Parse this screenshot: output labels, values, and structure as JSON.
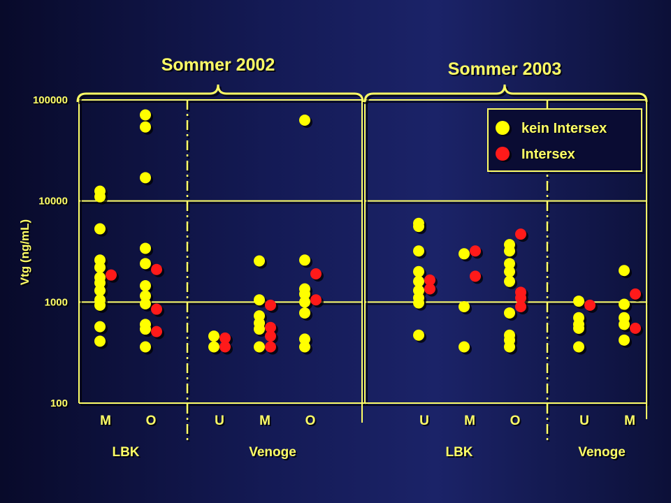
{
  "chart_data": {
    "type": "scatter",
    "ylabel": "Vtg (ng/mL)",
    "yscale": "log",
    "ylim": [
      100,
      100000
    ],
    "yticks": [
      "100",
      "1000",
      "10000",
      "100000"
    ],
    "grid": true,
    "legend_position": "top-right",
    "seasons": [
      {
        "label": "Sommer 2002",
        "groups": [
          0,
          1
        ]
      },
      {
        "label": "Sommer 2003",
        "groups": [
          2,
          3
        ]
      }
    ],
    "groups": [
      {
        "label": "LBK",
        "categories": [
          0,
          1
        ]
      },
      {
        "label": "Venoge",
        "categories": [
          2,
          3,
          4
        ]
      },
      {
        "label": "LBK",
        "categories": [
          5,
          6,
          7
        ]
      },
      {
        "label": "Venoge",
        "categories": [
          8,
          9
        ]
      }
    ],
    "categories": [
      "M",
      "O",
      "U",
      "M",
      "O",
      "U",
      "M",
      "O",
      "U",
      "M"
    ],
    "series": [
      {
        "name": "kein Intersex",
        "color": "#ffff00",
        "points": [
          {
            "cat": 0,
            "y": 12500
          },
          {
            "cat": 0,
            "y": 11000
          },
          {
            "cat": 0,
            "y": 5300
          },
          {
            "cat": 0,
            "y": 2600
          },
          {
            "cat": 0,
            "y": 2200
          },
          {
            "cat": 0,
            "y": 1750
          },
          {
            "cat": 0,
            "y": 1550
          },
          {
            "cat": 0,
            "y": 1300
          },
          {
            "cat": 0,
            "y": 1050
          },
          {
            "cat": 0,
            "y": 930
          },
          {
            "cat": 0,
            "y": 570
          },
          {
            "cat": 0,
            "y": 410
          },
          {
            "cat": 1,
            "y": 71000
          },
          {
            "cat": 1,
            "y": 54000
          },
          {
            "cat": 1,
            "y": 17000
          },
          {
            "cat": 1,
            "y": 3400
          },
          {
            "cat": 1,
            "y": 2400
          },
          {
            "cat": 1,
            "y": 1450
          },
          {
            "cat": 1,
            "y": 1150
          },
          {
            "cat": 1,
            "y": 960
          },
          {
            "cat": 1,
            "y": 600
          },
          {
            "cat": 1,
            "y": 540
          },
          {
            "cat": 1,
            "y": 360
          },
          {
            "cat": 2,
            "y": 460
          },
          {
            "cat": 2,
            "y": 360
          },
          {
            "cat": 3,
            "y": 2550
          },
          {
            "cat": 3,
            "y": 1050
          },
          {
            "cat": 3,
            "y": 730
          },
          {
            "cat": 3,
            "y": 620
          },
          {
            "cat": 3,
            "y": 540
          },
          {
            "cat": 3,
            "y": 360
          },
          {
            "cat": 4,
            "y": 63000
          },
          {
            "cat": 4,
            "y": 2600
          },
          {
            "cat": 4,
            "y": 1350
          },
          {
            "cat": 4,
            "y": 1200
          },
          {
            "cat": 4,
            "y": 1000
          },
          {
            "cat": 4,
            "y": 780
          },
          {
            "cat": 4,
            "y": 430
          },
          {
            "cat": 4,
            "y": 360
          },
          {
            "cat": 5,
            "y": 6000
          },
          {
            "cat": 5,
            "y": 5600
          },
          {
            "cat": 5,
            "y": 3200
          },
          {
            "cat": 5,
            "y": 2000
          },
          {
            "cat": 5,
            "y": 1600
          },
          {
            "cat": 5,
            "y": 1300
          },
          {
            "cat": 5,
            "y": 1100
          },
          {
            "cat": 5,
            "y": 980
          },
          {
            "cat": 5,
            "y": 470
          },
          {
            "cat": 6,
            "y": 3000
          },
          {
            "cat": 6,
            "y": 900
          },
          {
            "cat": 6,
            "y": 360
          },
          {
            "cat": 7,
            "y": 3700
          },
          {
            "cat": 7,
            "y": 3200
          },
          {
            "cat": 7,
            "y": 2400
          },
          {
            "cat": 7,
            "y": 2000
          },
          {
            "cat": 7,
            "y": 1600
          },
          {
            "cat": 7,
            "y": 780
          },
          {
            "cat": 7,
            "y": 470
          },
          {
            "cat": 7,
            "y": 420
          },
          {
            "cat": 7,
            "y": 360
          },
          {
            "cat": 8,
            "y": 1020
          },
          {
            "cat": 8,
            "y": 700
          },
          {
            "cat": 8,
            "y": 600
          },
          {
            "cat": 8,
            "y": 550
          },
          {
            "cat": 8,
            "y": 360
          },
          {
            "cat": 9,
            "y": 2050
          },
          {
            "cat": 9,
            "y": 950
          },
          {
            "cat": 9,
            "y": 700
          },
          {
            "cat": 9,
            "y": 600
          },
          {
            "cat": 9,
            "y": 420
          }
        ]
      },
      {
        "name": "Intersex",
        "color": "#ff1a1a",
        "points": [
          {
            "cat": 0,
            "y": 1850
          },
          {
            "cat": 1,
            "y": 2100
          },
          {
            "cat": 1,
            "y": 850
          },
          {
            "cat": 1,
            "y": 510
          },
          {
            "cat": 2,
            "y": 440
          },
          {
            "cat": 2,
            "y": 360
          },
          {
            "cat": 3,
            "y": 930
          },
          {
            "cat": 3,
            "y": 560
          },
          {
            "cat": 3,
            "y": 460
          },
          {
            "cat": 3,
            "y": 360
          },
          {
            "cat": 4,
            "y": 1900
          },
          {
            "cat": 4,
            "y": 1050
          },
          {
            "cat": 5,
            "y": 1650
          },
          {
            "cat": 5,
            "y": 1350
          },
          {
            "cat": 6,
            "y": 3200
          },
          {
            "cat": 6,
            "y": 1800
          },
          {
            "cat": 7,
            "y": 4700
          },
          {
            "cat": 7,
            "y": 1250
          },
          {
            "cat": 7,
            "y": 1100
          },
          {
            "cat": 7,
            "y": 900
          },
          {
            "cat": 8,
            "y": 930
          },
          {
            "cat": 9,
            "y": 1200
          },
          {
            "cat": 9,
            "y": 550
          }
        ]
      }
    ]
  }
}
